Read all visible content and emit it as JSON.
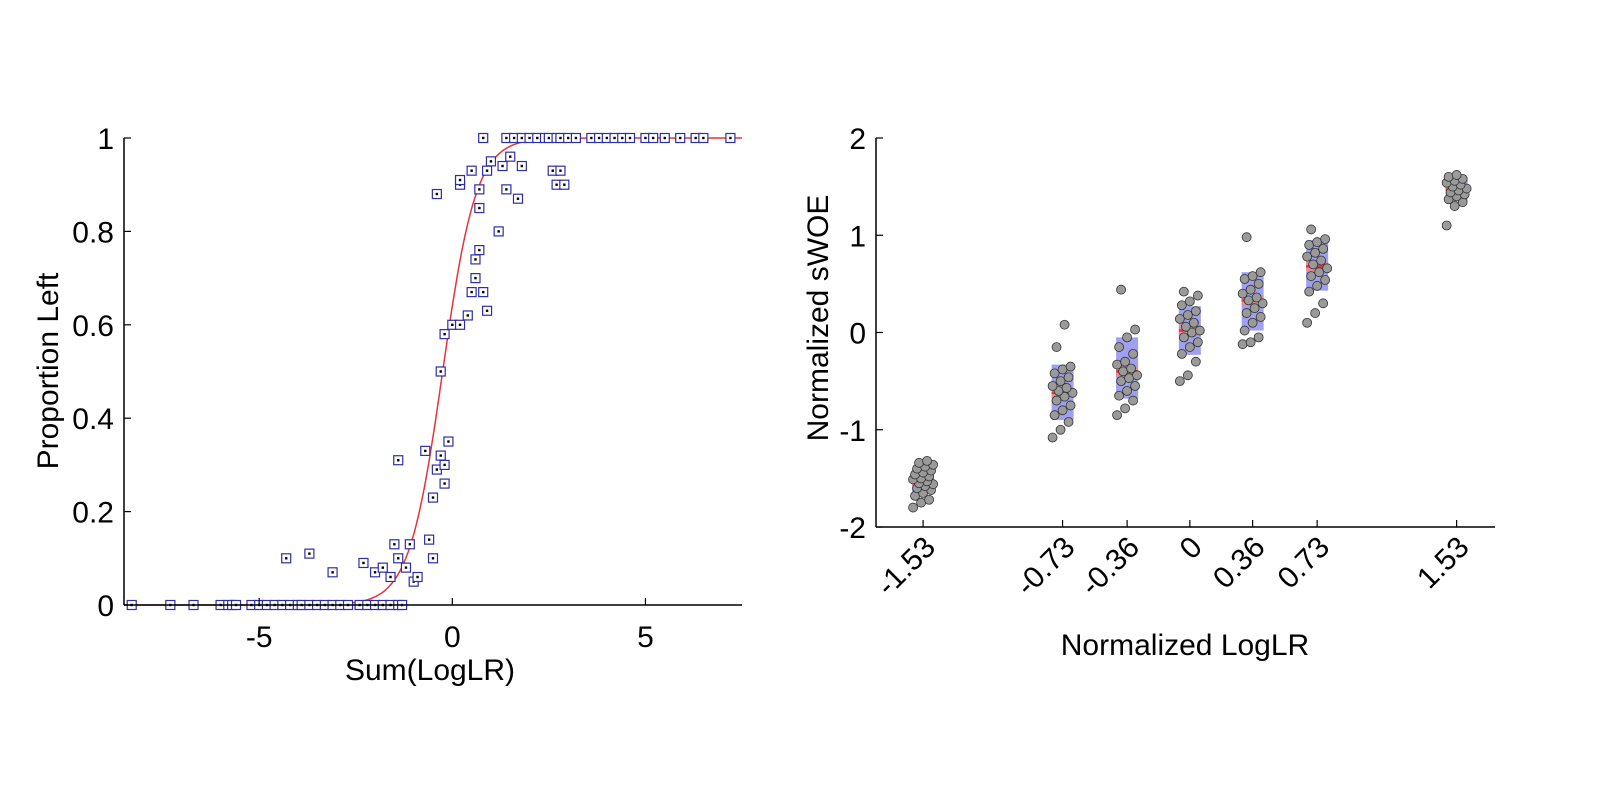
{
  "chart_data": [
    {
      "type": "scatter",
      "title": "",
      "xlabel": "Sum(LogLR)",
      "ylabel": "Proportion Left",
      "xlim": [
        -8.5,
        7.5
      ],
      "ylim": [
        0,
        1
      ],
      "xticks": [
        "-5",
        "0",
        "5"
      ],
      "yticks": [
        "0",
        "0.2",
        "0.4",
        "0.6",
        "0.8",
        "1"
      ],
      "grid": false,
      "legend": "none",
      "colors": {
        "points": "#2e2ea8",
        "curve": "#e8333a"
      },
      "series": [
        {
          "kind": "points",
          "points": [
            [
              -8.3,
              0
            ],
            [
              -7.3,
              0
            ],
            [
              -6.7,
              0
            ],
            [
              -6.0,
              0
            ],
            [
              -5.8,
              0
            ],
            [
              -5.7,
              0
            ],
            [
              -5.6,
              0
            ],
            [
              -5.2,
              0
            ],
            [
              -5.0,
              0
            ],
            [
              -4.8,
              0
            ],
            [
              -4.6,
              0
            ],
            [
              -4.4,
              0
            ],
            [
              -4.2,
              0
            ],
            [
              -4.0,
              0
            ],
            [
              -3.9,
              0
            ],
            [
              -3.7,
              0
            ],
            [
              -3.5,
              0
            ],
            [
              -3.3,
              0
            ],
            [
              -3.1,
              0
            ],
            [
              -2.9,
              0
            ],
            [
              -2.7,
              0
            ],
            [
              -2.4,
              0
            ],
            [
              -2.2,
              0
            ],
            [
              -2.0,
              0
            ],
            [
              -1.8,
              0
            ],
            [
              -1.6,
              0
            ],
            [
              -1.4,
              0
            ],
            [
              -1.3,
              0
            ],
            [
              -4.3,
              0.1
            ],
            [
              -3.7,
              0.11
            ],
            [
              -3.1,
              0.07
            ],
            [
              -2.3,
              0.09
            ],
            [
              -2.0,
              0.07
            ],
            [
              -1.8,
              0.08
            ],
            [
              -1.6,
              0.06
            ],
            [
              -1.5,
              0.13
            ],
            [
              -1.4,
              0.1
            ],
            [
              -1.2,
              0.08
            ],
            [
              -1.1,
              0.13
            ],
            [
              -1.0,
              0.05
            ],
            [
              -0.9,
              0.06
            ],
            [
              -1.4,
              0.31
            ],
            [
              -0.7,
              0.33
            ],
            [
              -0.6,
              0.14
            ],
            [
              -0.5,
              0.1
            ],
            [
              -0.5,
              0.23
            ],
            [
              -0.4,
              0.29
            ],
            [
              -0.3,
              0.32
            ],
            [
              -0.2,
              0.26
            ],
            [
              -0.2,
              0.3
            ],
            [
              -0.1,
              0.35
            ],
            [
              -0.3,
              0.5
            ],
            [
              -0.2,
              0.58
            ],
            [
              0.0,
              0.6
            ],
            [
              0.2,
              0.6
            ],
            [
              0.4,
              0.62
            ],
            [
              0.5,
              0.67
            ],
            [
              0.6,
              0.7
            ],
            [
              0.6,
              0.74
            ],
            [
              0.7,
              0.76
            ],
            [
              0.8,
              0.67
            ],
            [
              0.9,
              0.63
            ],
            [
              -0.4,
              0.88
            ],
            [
              0.2,
              0.9
            ],
            [
              0.2,
              0.91
            ],
            [
              0.5,
              0.93
            ],
            [
              0.7,
              0.85
            ],
            [
              0.7,
              0.89
            ],
            [
              0.9,
              0.93
            ],
            [
              1.0,
              0.95
            ],
            [
              1.2,
              0.8
            ],
            [
              1.3,
              0.94
            ],
            [
              1.4,
              0.89
            ],
            [
              1.5,
              0.96
            ],
            [
              1.7,
              0.87
            ],
            [
              1.8,
              0.94
            ],
            [
              0.8,
              1
            ],
            [
              1.4,
              1
            ],
            [
              1.6,
              1
            ],
            [
              1.8,
              1
            ],
            [
              2.0,
              1
            ],
            [
              2.2,
              1
            ],
            [
              2.4,
              1
            ],
            [
              2.6,
              0.93
            ],
            [
              2.7,
              0.9
            ],
            [
              2.8,
              0.93
            ],
            [
              2.9,
              0.9
            ],
            [
              2.5,
              1
            ],
            [
              2.7,
              1
            ],
            [
              2.8,
              1
            ],
            [
              3.0,
              1
            ],
            [
              3.2,
              1
            ],
            [
              3.6,
              1
            ],
            [
              3.8,
              1
            ],
            [
              4.0,
              1
            ],
            [
              4.2,
              1
            ],
            [
              4.4,
              1
            ],
            [
              4.6,
              1
            ],
            [
              5.0,
              1
            ],
            [
              5.2,
              1
            ],
            [
              5.5,
              1
            ],
            [
              5.9,
              1
            ],
            [
              6.3,
              1
            ],
            [
              6.5,
              1
            ],
            [
              7.2,
              1
            ]
          ]
        },
        {
          "kind": "logistic-fit",
          "slope": 2.3,
          "midpoint": -0.25
        }
      ]
    },
    {
      "type": "scatter",
      "title": "",
      "xlabel": "Normalized LogLR",
      "ylabel": "Normalized sWOE",
      "xlim": [
        -1.8,
        1.75
      ],
      "ylim": [
        -2,
        2
      ],
      "xticks": [
        "-1.53",
        "-0.73",
        "-0.36",
        "0",
        "0.36",
        "0.73",
        "1.53"
      ],
      "yticks": [
        "-2",
        "-1",
        "0",
        "1",
        "2"
      ],
      "grid": false,
      "legend": "none",
      "colors": {
        "points": "#9a9a9a",
        "box": "#8f8ff0",
        "mean": "#f08a8a"
      },
      "groups": [
        {
          "x": -1.53,
          "mean": -1.53,
          "sd_low": -1.66,
          "sd_high": -1.4,
          "points": [
            -1.8,
            -1.75,
            -1.72,
            -1.68,
            -1.65,
            -1.62,
            -1.6,
            -1.58,
            -1.56,
            -1.55,
            -1.53,
            -1.51,
            -1.5,
            -1.48,
            -1.46,
            -1.44,
            -1.42,
            -1.4,
            -1.38,
            -1.36,
            -1.34,
            -1.32
          ]
        },
        {
          "x": -0.73,
          "mean": -0.62,
          "sd_low": -0.9,
          "sd_high": -0.33,
          "points": [
            -1.08,
            -1.0,
            -0.92,
            -0.85,
            -0.8,
            -0.75,
            -0.7,
            -0.66,
            -0.62,
            -0.6,
            -0.57,
            -0.55,
            -0.5,
            -0.46,
            -0.42,
            -0.38,
            -0.35,
            -0.15,
            0.08
          ]
        },
        {
          "x": -0.36,
          "mean": -0.4,
          "sd_low": -0.68,
          "sd_high": -0.05,
          "points": [
            -0.85,
            -0.78,
            -0.7,
            -0.65,
            -0.6,
            -0.55,
            -0.5,
            -0.47,
            -0.44,
            -0.4,
            -0.37,
            -0.33,
            -0.3,
            -0.22,
            -0.15,
            -0.05,
            0.03,
            0.44
          ]
        },
        {
          "x": 0.0,
          "mean": 0.02,
          "sd_low": -0.23,
          "sd_high": 0.27,
          "points": [
            -0.5,
            -0.44,
            -0.3,
            -0.22,
            -0.15,
            -0.1,
            -0.05,
            0.0,
            0.02,
            0.06,
            0.1,
            0.14,
            0.18,
            0.22,
            0.28,
            0.32,
            0.38,
            0.42
          ]
        },
        {
          "x": 0.36,
          "mean": 0.33,
          "sd_low": 0.02,
          "sd_high": 0.62,
          "points": [
            -0.12,
            -0.1,
            -0.05,
            0.02,
            0.1,
            0.16,
            0.2,
            0.25,
            0.3,
            0.33,
            0.36,
            0.4,
            0.44,
            0.5,
            0.55,
            0.58,
            0.62,
            0.98
          ]
        },
        {
          "x": 0.73,
          "mean": 0.68,
          "sd_low": 0.43,
          "sd_high": 0.95,
          "points": [
            0.1,
            0.2,
            0.3,
            0.42,
            0.48,
            0.54,
            0.58,
            0.62,
            0.66,
            0.7,
            0.74,
            0.78,
            0.82,
            0.86,
            0.9,
            0.93,
            0.96,
            1.06
          ]
        },
        {
          "x": 1.53,
          "mean": 1.47,
          "sd_low": 1.35,
          "sd_high": 1.6,
          "points": [
            1.1,
            1.3,
            1.34,
            1.37,
            1.4,
            1.42,
            1.44,
            1.46,
            1.48,
            1.5,
            1.52,
            1.54,
            1.56,
            1.58,
            1.6,
            1.62
          ]
        }
      ]
    }
  ]
}
